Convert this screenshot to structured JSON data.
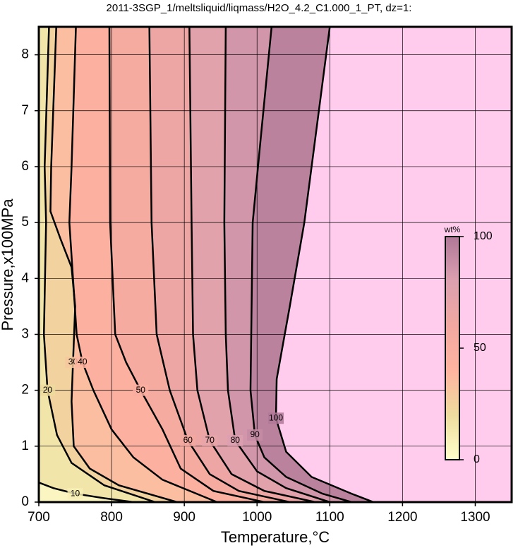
{
  "chart_data": {
    "type": "contour",
    "title": "2011-3SGP_1/meltsliquid/liqmass/H2O_4.2_C1.000_1_PT, dz=1:",
    "xlabel": "Temperature,°C",
    "ylabel": "Pressure,x100MPa",
    "xlim": [
      700,
      1350
    ],
    "ylim": [
      0,
      8.5
    ],
    "xticks": [
      700,
      800,
      900,
      1000,
      1100,
      1200,
      1300
    ],
    "yticks": [
      0,
      1,
      2,
      3,
      4,
      5,
      6,
      7,
      8
    ],
    "grid": true,
    "background_color": "#ffccee",
    "colormap": [
      "#ffffcc",
      "#eedc9e",
      "#ffb4a0",
      "#f2a8a0",
      "#dca0b0",
      "#b07898"
    ],
    "contour_color": "#000000",
    "contours": [
      {
        "level": 10,
        "x": [
          700,
          720,
          750,
          790,
          830
        ],
        "y": [
          0.35,
          0.25,
          0.15,
          0.07,
          0
        ]
      },
      {
        "level": 20,
        "x": [
          714,
          708,
          710,
          707,
          712,
          725,
          745,
          790,
          860
        ],
        "y": [
          8.5,
          6,
          5,
          3,
          2,
          1.2,
          0.7,
          0.3,
          0
        ]
      },
      {
        "level": 30,
        "x": [
          724,
          717,
          716,
          730,
          745,
          750,
          747,
          745,
          748,
          770,
          810,
          890
        ],
        "y": [
          8.5,
          6,
          5.2,
          4.7,
          4.2,
          3.5,
          2.5,
          1.8,
          1,
          0.6,
          0.3,
          0
        ]
      },
      {
        "level": 40,
        "x": [
          751,
          745,
          742,
          748,
          752,
          760,
          775,
          800,
          830,
          870,
          945
        ],
        "y": [
          8.5,
          6,
          5,
          3.8,
          3,
          2.5,
          2,
          1.3,
          0.8,
          0.4,
          0
        ]
      },
      {
        "level": 50,
        "x": [
          797,
          798,
          805,
          820,
          840,
          870,
          895,
          940,
          1010
        ],
        "y": [
          8.5,
          5,
          3,
          2.5,
          2,
          1.3,
          0.6,
          0.2,
          0
        ]
      },
      {
        "level": 60,
        "x": [
          852,
          855,
          862,
          880,
          905,
          935,
          975,
          1045
        ],
        "y": [
          8.5,
          5,
          3,
          2,
          1.1,
          0.5,
          0.2,
          0
        ]
      },
      {
        "level": 70,
        "x": [
          907,
          910,
          912,
          918,
          935,
          965,
          1010,
          1080
        ],
        "y": [
          8.5,
          5,
          3,
          2,
          1.1,
          0.5,
          0.2,
          0
        ]
      },
      {
        "level": 80,
        "x": [
          957,
          955,
          957,
          960,
          970,
          1000,
          1040,
          1100
        ],
        "y": [
          8.5,
          5,
          3,
          2,
          1.1,
          0.55,
          0.25,
          0
        ]
      },
      {
        "level": 90,
        "x": [
          1020,
          1005,
          994,
          992,
          991,
          997,
          1010,
          1040,
          1090,
          1130
        ],
        "y": [
          8.5,
          6.5,
          5,
          3,
          2,
          1.2,
          0.8,
          0.45,
          0.15,
          0
        ]
      },
      {
        "level": 100,
        "x": [
          1100,
          1080,
          1065,
          1045,
          1027,
          1026,
          1040,
          1075,
          1130,
          1160
        ],
        "y": [
          8.5,
          6.5,
          5,
          3.5,
          2.2,
          1.5,
          0.9,
          0.45,
          0.15,
          0
        ]
      }
    ],
    "colorbar": {
      "label": "wt%",
      "clim": [
        0,
        100
      ],
      "ticks": [
        0,
        50,
        100
      ]
    }
  }
}
